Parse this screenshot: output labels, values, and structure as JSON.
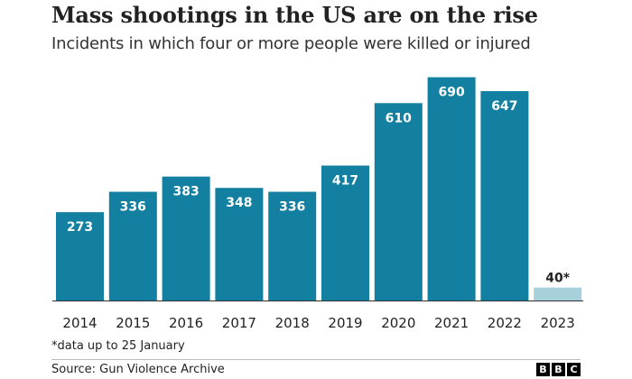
{
  "chart_data": {
    "type": "bar",
    "title": "Mass shootings in the US are on the rise",
    "subtitle": "Incidents in which four or more people were killed or injured",
    "categories": [
      "2014",
      "2015",
      "2016",
      "2017",
      "2018",
      "2019",
      "2020",
      "2021",
      "2022",
      "2023"
    ],
    "values": [
      273,
      336,
      383,
      348,
      336,
      417,
      610,
      690,
      647,
      40
    ],
    "value_labels": [
      "273",
      "336",
      "383",
      "348",
      "336",
      "417",
      "610",
      "690",
      "647",
      "40*"
    ],
    "bar_color": "#1380A1",
    "highlight_color": "#A8D0DC",
    "highlight_categories": [
      "2023"
    ],
    "ylim": [
      0,
      700
    ],
    "xlabel": "",
    "ylabel": "",
    "grid": false,
    "legend": "none"
  },
  "footnote": "*data up to 25 January",
  "source": "Source: Gun Violence Archive",
  "logo": [
    "B",
    "B",
    "C"
  ]
}
